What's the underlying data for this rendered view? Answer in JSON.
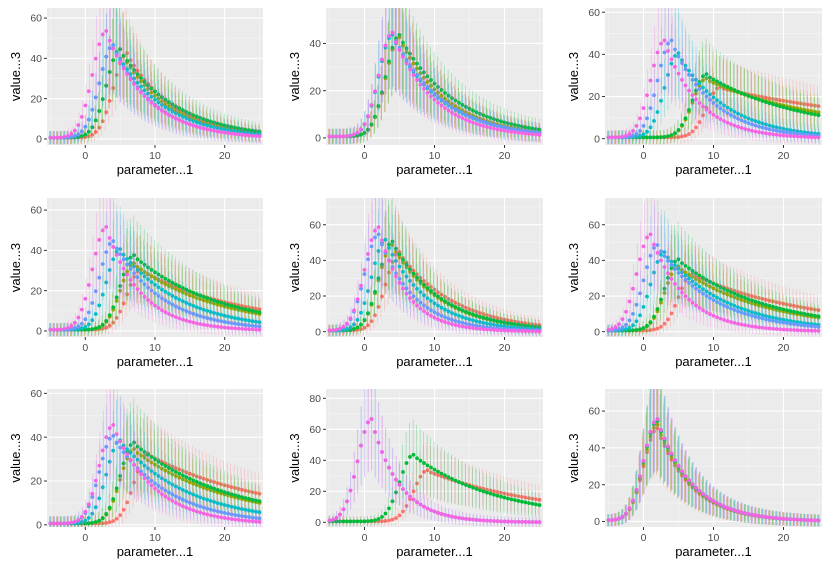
{
  "colors": {
    "panel_background": "#ebebeb",
    "grid_major": "#ffffff",
    "grid_minor": "#f5f5f5",
    "series": [
      "#F8766D",
      "#A3A500",
      "#00BA38",
      "#00BFC4",
      "#619CFF",
      "#F564E3"
    ]
  },
  "chart_data": [
    {
      "type": "scatter",
      "xlabel": "parameter...1",
      "ylabel": "value...3",
      "xlim": [
        -5.5,
        25.5
      ],
      "ylim": [
        -3,
        65
      ],
      "xticks": [
        0,
        10,
        20
      ],
      "yticks": [
        0,
        20,
        40,
        60
      ],
      "grid": true,
      "error_bars": true,
      "series": [
        {
          "color": "#F8766D",
          "peak_x": 6,
          "peak_y": 42,
          "decay": 7,
          "tail": 0
        },
        {
          "color": "#A3A500",
          "peak_x": 5,
          "peak_y": 44,
          "decay": 7,
          "tail": 0
        },
        {
          "color": "#00BA38",
          "peak_x": 5,
          "peak_y": 44,
          "decay": 8,
          "tail": 0
        },
        {
          "color": "#00BFC4",
          "peak_x": 4,
          "peak_y": 46,
          "decay": 7,
          "tail": 0
        },
        {
          "color": "#619CFF",
          "peak_x": 4,
          "peak_y": 46,
          "decay": 6,
          "tail": 0
        },
        {
          "color": "#F564E3",
          "peak_x": 3,
          "peak_y": 53,
          "decay": 6,
          "tail": 0
        }
      ]
    },
    {
      "type": "scatter",
      "xlabel": "parameter...1",
      "ylabel": "value...3",
      "xlim": [
        -5.5,
        25.5
      ],
      "ylim": [
        -3,
        55
      ],
      "xticks": [
        0,
        10,
        20
      ],
      "yticks": [
        0,
        20,
        40
      ],
      "grid": true,
      "error_bars": true,
      "series": [
        {
          "color": "#F8766D",
          "peak_x": 5,
          "peak_y": 42,
          "decay": 7,
          "tail": 0
        },
        {
          "color": "#A3A500",
          "peak_x": 5,
          "peak_y": 42,
          "decay": 7,
          "tail": 0
        },
        {
          "color": "#00BA38",
          "peak_x": 5,
          "peak_y": 43,
          "decay": 8,
          "tail": 0
        },
        {
          "color": "#00BFC4",
          "peak_x": 4,
          "peak_y": 43,
          "decay": 7,
          "tail": 0
        },
        {
          "color": "#619CFF",
          "peak_x": 4,
          "peak_y": 44,
          "decay": 7,
          "tail": 0
        },
        {
          "color": "#F564E3",
          "peak_x": 4,
          "peak_y": 44,
          "decay": 6,
          "tail": 0
        }
      ]
    },
    {
      "type": "scatter",
      "xlabel": "parameter...1",
      "ylabel": "value...3",
      "xlim": [
        -5.5,
        25.5
      ],
      "ylim": [
        -3,
        62
      ],
      "xticks": [
        0,
        10,
        20
      ],
      "yticks": [
        0,
        20,
        40,
        60
      ],
      "grid": true,
      "error_bars": true,
      "series": [
        {
          "color": "#F8766D",
          "peak_x": 11,
          "peak_y": 24,
          "decay": 20,
          "tail": 12
        },
        {
          "color": "#A3A500",
          "peak_x": 9,
          "peak_y": 28,
          "decay": 14,
          "tail": 8
        },
        {
          "color": "#00BA38",
          "peak_x": 9,
          "peak_y": 30,
          "decay": 13,
          "tail": 5
        },
        {
          "color": "#00BFC4",
          "peak_x": 5,
          "peak_y": 40,
          "decay": 7,
          "tail": 0
        },
        {
          "color": "#619CFF",
          "peak_x": 4,
          "peak_y": 46,
          "decay": 6,
          "tail": 0
        },
        {
          "color": "#F564E3",
          "peak_x": 3,
          "peak_y": 46,
          "decay": 5,
          "tail": 0
        }
      ]
    },
    {
      "type": "scatter",
      "xlabel": "parameter...1",
      "ylabel": "value...3",
      "xlim": [
        -5.5,
        25.5
      ],
      "ylim": [
        -3,
        66
      ],
      "xticks": [
        0,
        10,
        20
      ],
      "yticks": [
        0,
        20,
        40,
        60
      ],
      "grid": true,
      "error_bars": true,
      "series": [
        {
          "color": "#F8766D",
          "peak_x": 8,
          "peak_y": 30,
          "decay": 14,
          "tail": 4
        },
        {
          "color": "#A3A500",
          "peak_x": 7,
          "peak_y": 33,
          "decay": 12,
          "tail": 2
        },
        {
          "color": "#00BA38",
          "peak_x": 7,
          "peak_y": 37,
          "decay": 12,
          "tail": 2
        },
        {
          "color": "#00BFC4",
          "peak_x": 5,
          "peak_y": 40,
          "decay": 9,
          "tail": 0
        },
        {
          "color": "#619CFF",
          "peak_x": 4,
          "peak_y": 44,
          "decay": 7,
          "tail": 0
        },
        {
          "color": "#F564E3",
          "peak_x": 3,
          "peak_y": 51,
          "decay": 5,
          "tail": 0
        }
      ]
    },
    {
      "type": "scatter",
      "xlabel": "parameter...1",
      "ylabel": "value...3",
      "xlim": [
        -5.5,
        25.5
      ],
      "ylim": [
        -3,
        75
      ],
      "xticks": [
        0,
        10,
        20
      ],
      "yticks": [
        0,
        20,
        40,
        60
      ],
      "grid": true,
      "error_bars": true,
      "series": [
        {
          "color": "#F8766D",
          "peak_x": 5,
          "peak_y": 44,
          "decay": 8,
          "tail": 0
        },
        {
          "color": "#A3A500",
          "peak_x": 4,
          "peak_y": 48,
          "decay": 7,
          "tail": 0
        },
        {
          "color": "#00BA38",
          "peak_x": 4,
          "peak_y": 50,
          "decay": 7,
          "tail": 0
        },
        {
          "color": "#00BFC4",
          "peak_x": 3,
          "peak_y": 51,
          "decay": 6,
          "tail": 0
        },
        {
          "color": "#619CFF",
          "peak_x": 2,
          "peak_y": 54,
          "decay": 5,
          "tail": 0
        },
        {
          "color": "#F564E3",
          "peak_x": 2,
          "peak_y": 58,
          "decay": 4,
          "tail": 0
        }
      ]
    },
    {
      "type": "scatter",
      "xlabel": "parameter...1",
      "ylabel": "value...3",
      "xlim": [
        -5.5,
        25.5
      ],
      "ylim": [
        -3,
        75
      ],
      "xticks": [
        0,
        10,
        20
      ],
      "yticks": [
        0,
        20,
        40,
        60
      ],
      "grid": true,
      "error_bars": true,
      "series": [
        {
          "color": "#F8766D",
          "peak_x": 7,
          "peak_y": 32,
          "decay": 16,
          "tail": 4
        },
        {
          "color": "#A3A500",
          "peak_x": 5,
          "peak_y": 36,
          "decay": 12,
          "tail": 2
        },
        {
          "color": "#00BA38",
          "peak_x": 5,
          "peak_y": 40,
          "decay": 12,
          "tail": 2
        },
        {
          "color": "#00BFC4",
          "peak_x": 3,
          "peak_y": 44,
          "decay": 9,
          "tail": 0
        },
        {
          "color": "#619CFF",
          "peak_x": 2,
          "peak_y": 48,
          "decay": 8,
          "tail": 0
        },
        {
          "color": "#F564E3",
          "peak_x": 1,
          "peak_y": 54,
          "decay": 5,
          "tail": 0
        }
      ]
    },
    {
      "type": "scatter",
      "xlabel": "parameter...1",
      "ylabel": "value...3",
      "xlim": [
        -5.5,
        25.5
      ],
      "ylim": [
        -1,
        62
      ],
      "xticks": [
        0,
        10,
        20
      ],
      "yticks": [
        0,
        20,
        40,
        60
      ],
      "grid": true,
      "error_bars": true,
      "series": [
        {
          "color": "#F8766D",
          "peak_x": 9,
          "peak_y": 32,
          "decay": 16,
          "tail": 6
        },
        {
          "color": "#A3A500",
          "peak_x": 7,
          "peak_y": 34,
          "decay": 13,
          "tail": 3
        },
        {
          "color": "#00BA38",
          "peak_x": 7,
          "peak_y": 37,
          "decay": 13,
          "tail": 3
        },
        {
          "color": "#00BFC4",
          "peak_x": 5,
          "peak_y": 38,
          "decay": 10,
          "tail": 1
        },
        {
          "color": "#619CFF",
          "peak_x": 4,
          "peak_y": 40,
          "decay": 8,
          "tail": 0
        },
        {
          "color": "#F564E3",
          "peak_x": 4,
          "peak_y": 45,
          "decay": 6,
          "tail": 0
        }
      ]
    },
    {
      "type": "scatter",
      "xlabel": "parameter...1",
      "ylabel": "value...3",
      "xlim": [
        -5.5,
        25.5
      ],
      "ylim": [
        -3,
        86
      ],
      "xticks": [
        0,
        10,
        20
      ],
      "yticks": [
        0,
        20,
        40,
        60,
        80
      ],
      "grid": true,
      "error_bars": true,
      "series": [
        {
          "color": "#F8766D",
          "peak_x": 9,
          "peak_y": 33,
          "decay": 16,
          "tail": 6
        },
        {
          "color": "#00BA38",
          "peak_x": 7,
          "peak_y": 43,
          "decay": 12,
          "tail": 3
        },
        {
          "color": "#619CFF",
          "peak_x": 1,
          "peak_y": 66,
          "decay": 4,
          "tail": 0
        },
        {
          "color": "#F564E3",
          "peak_x": 1,
          "peak_y": 66,
          "decay": 4,
          "tail": 0
        }
      ]
    },
    {
      "type": "scatter",
      "xlabel": "parameter...1",
      "ylabel": "value...3",
      "xlim": [
        -5.5,
        25.5
      ],
      "ylim": [
        -3,
        72
      ],
      "xticks": [
        0,
        10,
        20
      ],
      "yticks": [
        0,
        20,
        40,
        60
      ],
      "grid": true,
      "error_bars": true,
      "series": [
        {
          "color": "#F8766D",
          "peak_x": 2,
          "peak_y": 50,
          "decay": 5,
          "tail": 0
        },
        {
          "color": "#A3A500",
          "peak_x": 2,
          "peak_y": 52,
          "decay": 5,
          "tail": 0
        },
        {
          "color": "#00BA38",
          "peak_x": 2,
          "peak_y": 54,
          "decay": 5,
          "tail": 0
        },
        {
          "color": "#00BFC4",
          "peak_x": 2,
          "peak_y": 55,
          "decay": 5,
          "tail": 0
        },
        {
          "color": "#619CFF",
          "peak_x": 2,
          "peak_y": 55,
          "decay": 5,
          "tail": 0
        },
        {
          "color": "#F564E3",
          "peak_x": 2,
          "peak_y": 55,
          "decay": 5,
          "tail": 0
        }
      ]
    }
  ]
}
